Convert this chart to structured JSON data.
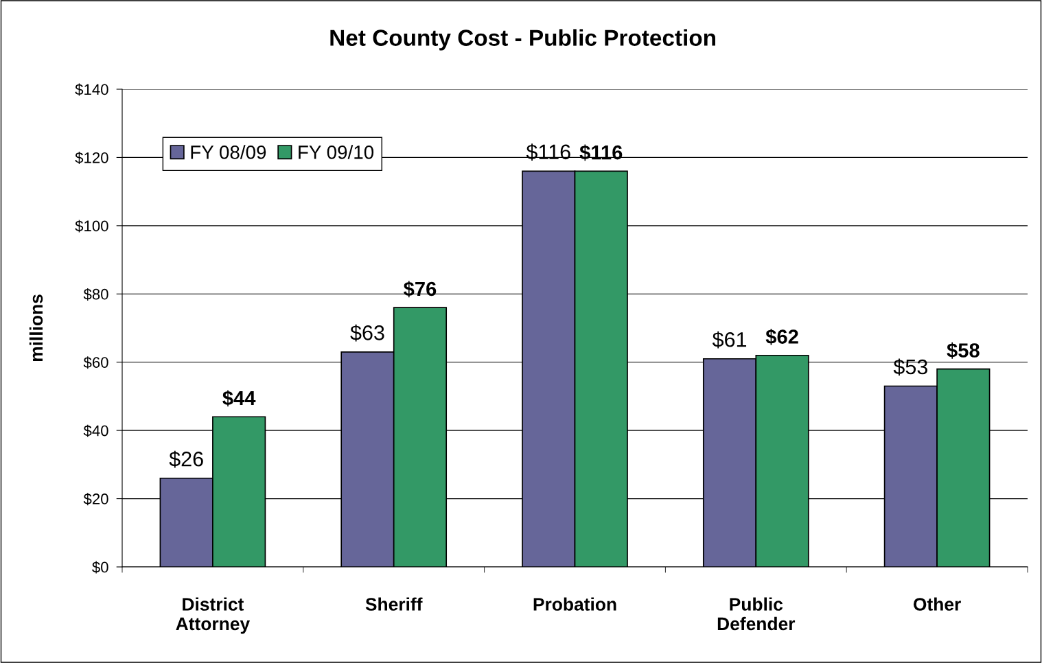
{
  "chart_data": {
    "type": "bar",
    "title": "Net County Cost - Public Protection",
    "ylabel": "millions",
    "categories": [
      "District\nAttorney",
      "Sheriff",
      "Probation",
      "Public\nDefender",
      "Other"
    ],
    "series": [
      {
        "name": "FY 08/09",
        "color": "#666699",
        "values": [
          26,
          63,
          116,
          61,
          53
        ],
        "value_labels": [
          "$26",
          "$63",
          "$116",
          "$61",
          "$53"
        ]
      },
      {
        "name": "FY 09/10",
        "color": "#339966",
        "values": [
          44,
          76,
          116,
          62,
          58
        ],
        "value_labels": [
          "$44",
          "$76",
          "$116",
          "$62",
          "$58"
        ]
      }
    ],
    "ylim": [
      0,
      140
    ],
    "yticks": [
      {
        "value": 0,
        "label": "$0"
      },
      {
        "value": 20,
        "label": "$20"
      },
      {
        "value": 40,
        "label": "$40"
      },
      {
        "value": 60,
        "label": "$60"
      },
      {
        "value": 80,
        "label": "$80"
      },
      {
        "value": 100,
        "label": "$100"
      },
      {
        "value": 120,
        "label": "$120"
      },
      {
        "value": 140,
        "label": "$140"
      }
    ],
    "grid": "y",
    "legend": "top left"
  }
}
